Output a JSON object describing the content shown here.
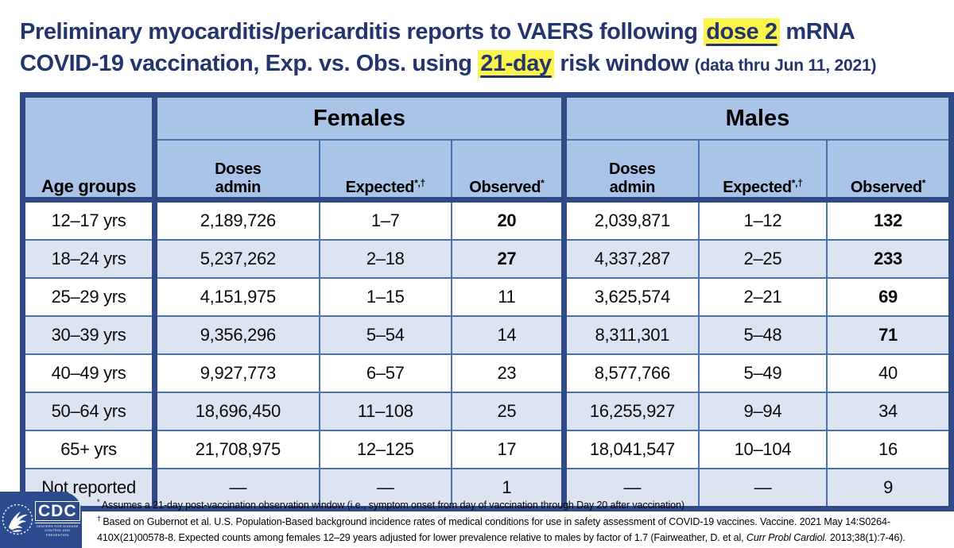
{
  "title": {
    "line1_pre": "Preliminary myocarditis/pericarditis reports to VAERS following ",
    "line1_highlight": "dose 2",
    "line1_post": " mRNA",
    "line2_pre": "COVID-19 vaccination, Exp. vs. Obs. using ",
    "line2_highlight": "21-day",
    "line2_post": " risk window ",
    "line2_note": "(data thru Jun 11, 2021)"
  },
  "table": {
    "age_header": "Age groups",
    "females_label": "Females",
    "males_label": "Males",
    "sub_headers": {
      "doses": "Doses\nadmin",
      "expected": "Expected",
      "expected_sup": "*,†",
      "observed": "Observed",
      "observed_sup": "*"
    },
    "rows": [
      {
        "age": "12–17 yrs",
        "f_doses": "2,189,726",
        "f_expected": "1–7",
        "f_observed": "20",
        "f_red": true,
        "m_doses": "2,039,871",
        "m_expected": "1–12",
        "m_observed": "132",
        "m_red": true
      },
      {
        "age": "18–24 yrs",
        "f_doses": "5,237,262",
        "f_expected": "2–18",
        "f_observed": "27",
        "f_red": true,
        "m_doses": "4,337,287",
        "m_expected": "2–25",
        "m_observed": "233",
        "m_red": true
      },
      {
        "age": "25–29 yrs",
        "f_doses": "4,151,975",
        "f_expected": "1–15",
        "f_observed": "11",
        "f_red": false,
        "m_doses": "3,625,574",
        "m_expected": "2–21",
        "m_observed": "69",
        "m_red": true
      },
      {
        "age": "30–39 yrs",
        "f_doses": "9,356,296",
        "f_expected": "5–54",
        "f_observed": "14",
        "f_red": false,
        "m_doses": "8,311,301",
        "m_expected": "5–48",
        "m_observed": "71",
        "m_red": true
      },
      {
        "age": "40–49 yrs",
        "f_doses": "9,927,773",
        "f_expected": "6–57",
        "f_observed": "23",
        "f_red": false,
        "m_doses": "8,577,766",
        "m_expected": "5–49",
        "m_observed": "40",
        "m_red": false
      },
      {
        "age": "50–64 yrs",
        "f_doses": "18,696,450",
        "f_expected": "11–108",
        "f_observed": "25",
        "f_red": false,
        "m_doses": "16,255,927",
        "m_expected": "9–94",
        "m_observed": "34",
        "m_red": false
      },
      {
        "age": "65+ yrs",
        "f_doses": "21,708,975",
        "f_expected": "12–125",
        "f_observed": "17",
        "f_red": false,
        "m_doses": "18,041,547",
        "m_expected": "10–104",
        "m_observed": "16",
        "m_red": false
      },
      {
        "age": "Not reported",
        "f_doses": "—",
        "f_expected": "—",
        "f_observed": "1",
        "f_red": false,
        "m_doses": "—",
        "m_expected": "—",
        "m_observed": "9",
        "m_red": false
      }
    ]
  },
  "footnotes": [
    {
      "sup": "*",
      "parts": [
        {
          "text": "Assumes a 21-day post-vaccination observation window (i.e., symptom onset from day of vaccination through Day 20 after vaccination)",
          "italic": false
        }
      ]
    },
    {
      "sup": "†",
      "parts": [
        {
          "text": "Based on Gubernot et al. U.S. Population-Based background incidence rates of medical conditions for use in safety assessment of COVID-19 vaccines. Vaccine. 2021 May 14:S0264-410X(21)00578-8. Expected counts among females 12–29 years adjusted for lower prevalence relative to males by factor of 1.7 (Fairweather, D. et al, ",
          "italic": false
        },
        {
          "text": "Curr Probl Cardiol.",
          "italic": true
        },
        {
          "text": " 2013;38(1):7-46).",
          "italic": false
        }
      ]
    }
  ],
  "logo": {
    "letters": "CDC",
    "subtext_line1": "Centers for Disease",
    "subtext_line2": "Control and Prevention"
  },
  "colors": {
    "title_navy": "#24356E",
    "table_border_navy": "#2E4B88",
    "cell_border_blue": "#4A72B0",
    "header_bg": "#A9C4E6",
    "alt_row_bg": "#DCE4F2",
    "highlight_yellow": "#FBF44C",
    "observed_red": "#B3251C",
    "logo_blue": "#2B4B8E"
  }
}
